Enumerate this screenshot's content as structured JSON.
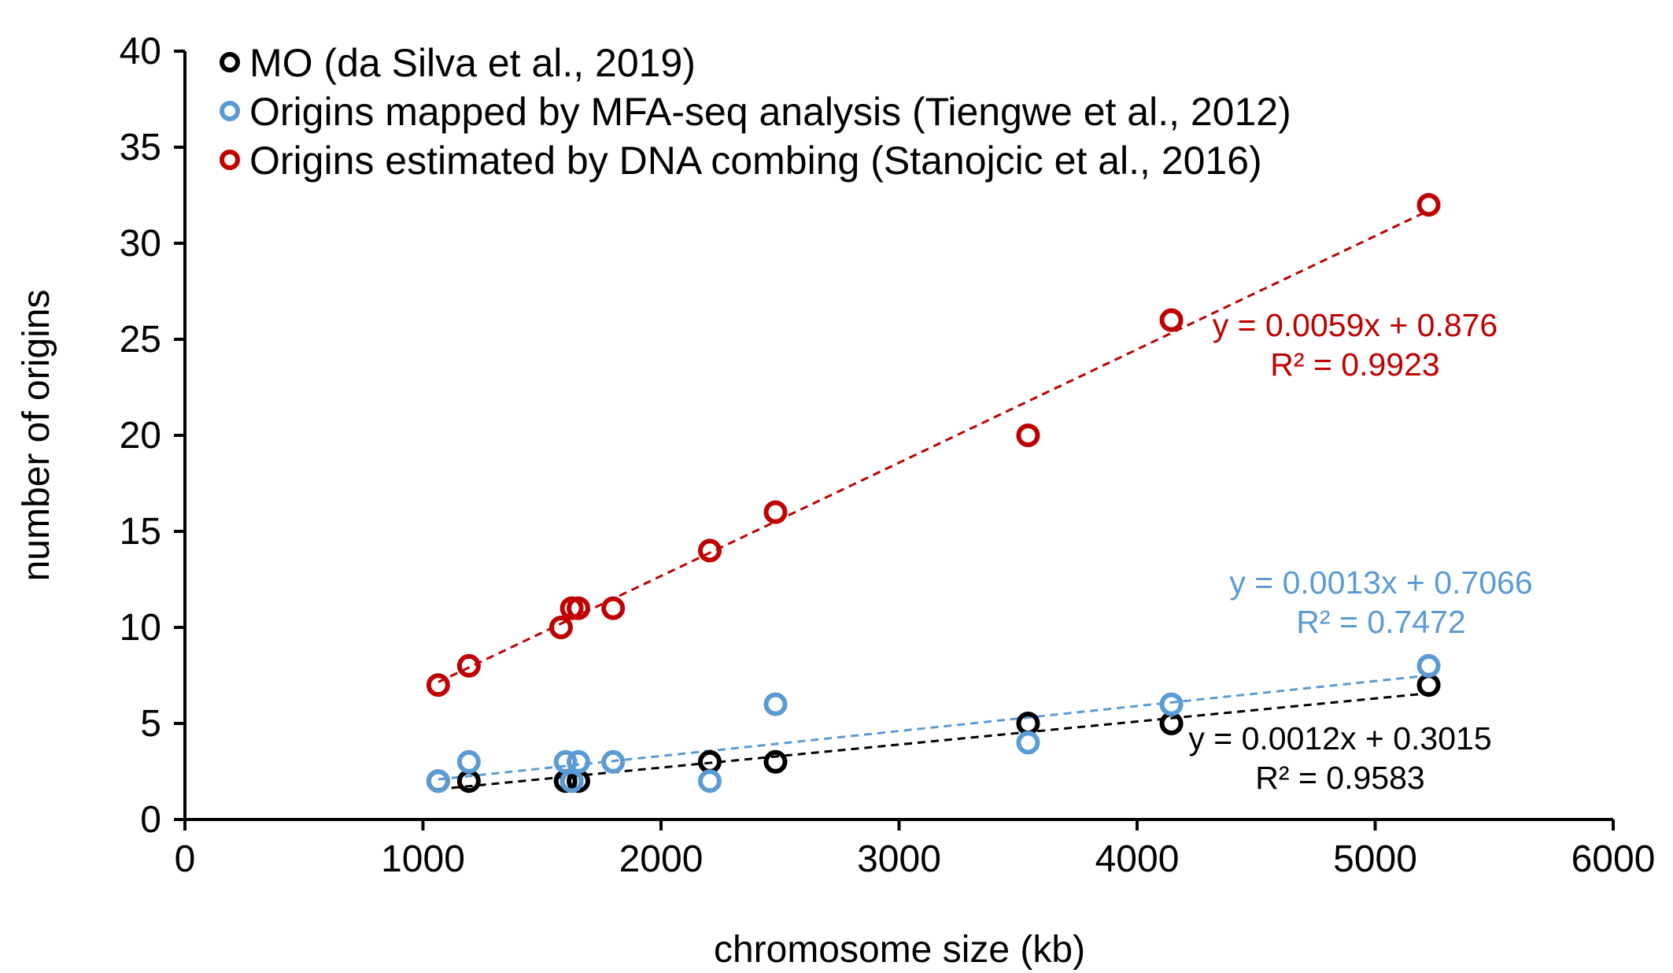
{
  "chart_data": {
    "type": "scatter",
    "xlabel": "chromosome size (kb)",
    "ylabel": "number of origins",
    "xlim": [
      0,
      6000
    ],
    "ylim": [
      0,
      40
    ],
    "xticks": [
      "0",
      "1000",
      "2000",
      "3000",
      "4000",
      "5000",
      "6000"
    ],
    "yticks": [
      "0",
      "5",
      "10",
      "15",
      "20",
      "25",
      "30",
      "35",
      "40"
    ],
    "grid": false,
    "legend_position": "top-left",
    "series": [
      {
        "name": "MO (da Silva et al., 2019)",
        "color": "#000000",
        "marker": "open-circle",
        "x": [
          1064,
          1193,
          1599,
          1625,
          1653,
          2205,
          2481,
          3542,
          4144,
          5225
        ],
        "y": [
          2,
          2,
          2,
          2,
          2,
          3,
          3,
          5,
          5,
          7
        ],
        "trendline": {
          "type": "linear",
          "slope": 0.0012,
          "intercept": 0.3015,
          "equation": "y = 0.0012x + 0.3015",
          "r2": "R² = 0.9583"
        }
      },
      {
        "name": "Origins mapped by MFA-seq analysis (Tiengwe et al., 2012)",
        "color": "#5b9bd5",
        "marker": "open-circle",
        "x": [
          1064,
          1193,
          1599,
          1625,
          1653,
          1799,
          2205,
          2481,
          3542,
          4144,
          5225
        ],
        "y": [
          2,
          3,
          3,
          2,
          3,
          3,
          2,
          6,
          4,
          6,
          8
        ],
        "trendline": {
          "type": "linear",
          "slope": 0.0013,
          "intercept": 0.7066,
          "equation": "y = 0.0013x + 0.7066",
          "r2": "R² = 0.7472"
        }
      },
      {
        "name": "Origins estimated by DNA combing (Stanojcic et al., 2016)",
        "color": "#c00000",
        "marker": "open-circle",
        "x": [
          1064,
          1193,
          1580,
          1625,
          1653,
          1799,
          2205,
          2481,
          3542,
          4144,
          5225
        ],
        "y": [
          7,
          8,
          10,
          11,
          11,
          11,
          14,
          16,
          20,
          26,
          32
        ],
        "trendline": {
          "type": "linear",
          "slope": 0.0059,
          "intercept": 0.876,
          "equation": "y = 0.0059x + 0.876",
          "r2": "R² = 0.9923"
        }
      }
    ]
  }
}
